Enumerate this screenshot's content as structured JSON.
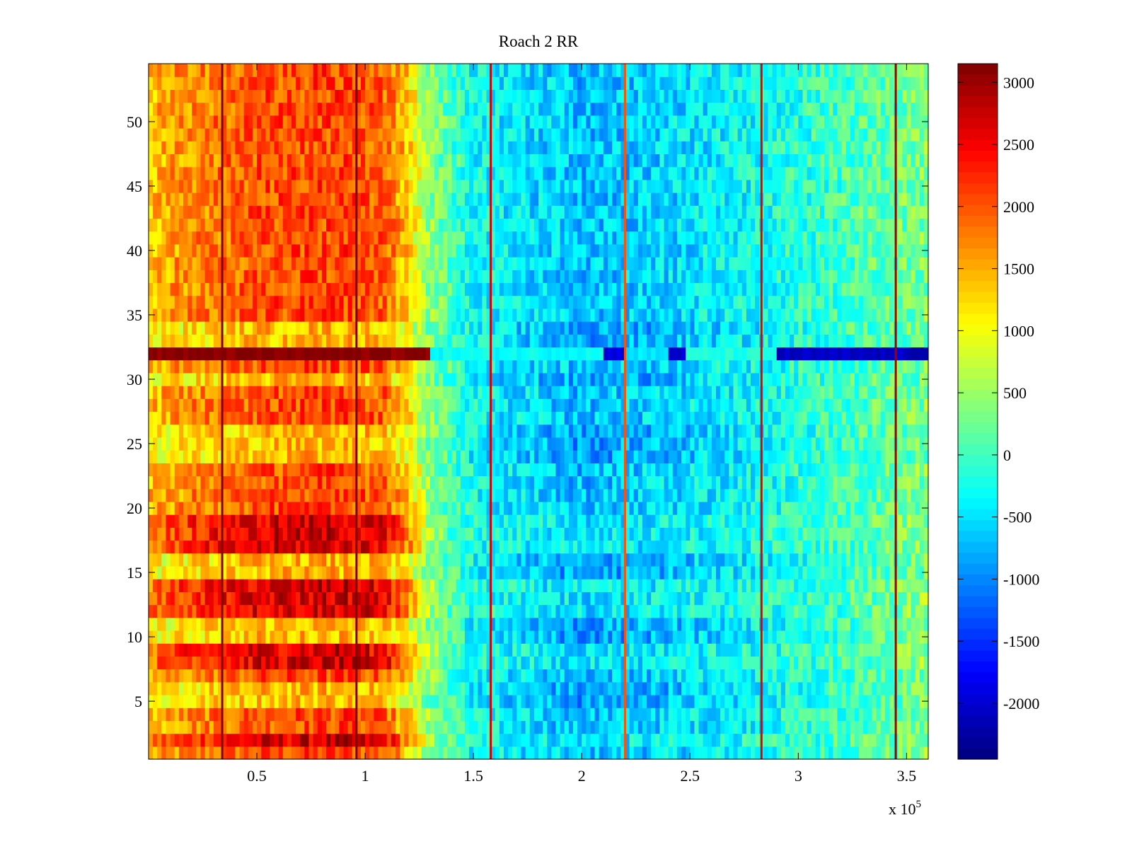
{
  "chart_data": {
    "type": "heatmap",
    "title": "Roach 2 RR",
    "xlabel": "",
    "ylabel": "",
    "x_multiplier_label": "x 10",
    "x_multiplier_exponent": "5",
    "xlim": [
      0,
      3.6
    ],
    "ylim": [
      0.5,
      54.5
    ],
    "x_ticks": [
      0.5,
      1,
      1.5,
      2,
      2.5,
      3,
      3.5
    ],
    "x_tick_labels": [
      "0.5",
      "1",
      "1.5",
      "2",
      "2.5",
      "3",
      "3.5"
    ],
    "y_ticks": [
      5,
      10,
      15,
      20,
      25,
      30,
      35,
      40,
      45,
      50
    ],
    "y_tick_labels": [
      "5",
      "10",
      "15",
      "20",
      "25",
      "30",
      "35",
      "40",
      "45",
      "50"
    ],
    "rows": 54,
    "colormap": "jet",
    "clim": [
      -2450,
      3150
    ],
    "colorbar": {
      "ticks": [
        3000,
        2500,
        2000,
        1500,
        1000,
        500,
        0,
        -500,
        -1000,
        -1500,
        -2000
      ],
      "tick_labels": [
        "3000",
        "2500",
        "2000",
        "1500",
        "1000",
        "500",
        "0",
        "-500",
        "-1000",
        "-1500",
        "-2000"
      ]
    },
    "x_profile_points": [
      {
        "x": 0.0,
        "value": 1400
      },
      {
        "x": 0.2,
        "value": 1700
      },
      {
        "x": 0.5,
        "value": 2000
      },
      {
        "x": 0.9,
        "value": 2100
      },
      {
        "x": 1.1,
        "value": 1900
      },
      {
        "x": 1.2,
        "value": 1300
      },
      {
        "x": 1.3,
        "value": 400
      },
      {
        "x": 1.5,
        "value": -300
      },
      {
        "x": 2.0,
        "value": -700
      },
      {
        "x": 2.3,
        "value": -600
      },
      {
        "x": 2.8,
        "value": -300
      },
      {
        "x": 3.2,
        "value": 0
      },
      {
        "x": 3.6,
        "value": 350
      }
    ],
    "strong_rows": [
      2,
      8,
      9,
      12,
      13,
      14,
      17,
      18,
      19
    ],
    "weak_rows": [
      5,
      6,
      10,
      11,
      15,
      16,
      24,
      25,
      26,
      30,
      33,
      34
    ],
    "anomalous_row": {
      "row": 32,
      "segments": [
        {
          "x_start": 0.0,
          "x_end": 1.3,
          "value": 3100
        },
        {
          "x_start": 1.3,
          "x_end": 2.1,
          "value": -300
        },
        {
          "x_start": 2.1,
          "x_end": 2.2,
          "value": -1900
        },
        {
          "x_start": 2.2,
          "x_end": 2.4,
          "value": -500
        },
        {
          "x_start": 2.4,
          "x_end": 2.48,
          "value": -2000
        },
        {
          "x_start": 2.48,
          "x_end": 2.9,
          "value": -200
        },
        {
          "x_start": 2.9,
          "x_end": 3.6,
          "value": -2100
        }
      ]
    },
    "vertical_lines": [
      {
        "x": 0.34,
        "value": 3150
      },
      {
        "x": 0.96,
        "value": 3150
      },
      {
        "x": 1.58,
        "value": 2700
      },
      {
        "x": 2.2,
        "value": 2000
      },
      {
        "x": 2.83,
        "value": 2600
      },
      {
        "x": 3.45,
        "value": 3000
      }
    ]
  }
}
